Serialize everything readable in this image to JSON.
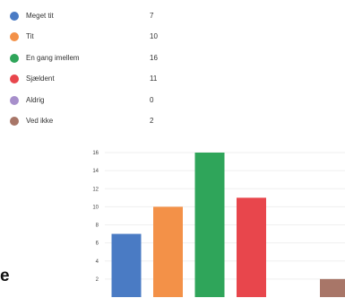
{
  "side_text": "e",
  "chart_data": {
    "type": "bar",
    "categories": [
      "Meget tit",
      "Tit",
      "En gang imellem",
      "Sjældent",
      "Aldrig",
      "Ved ikke"
    ],
    "values": [
      7,
      10,
      16,
      11,
      0,
      2
    ],
    "colors": [
      "#4a7bc4",
      "#f39148",
      "#2fa55a",
      "#e8464c",
      "#a78fcb",
      "#a87668"
    ],
    "title": "",
    "xlabel": "",
    "ylabel": "",
    "ylim": [
      0,
      16
    ],
    "yticks": [
      2,
      4,
      6,
      8,
      10,
      12,
      14,
      16
    ],
    "grid": true,
    "legend": "top-left"
  }
}
